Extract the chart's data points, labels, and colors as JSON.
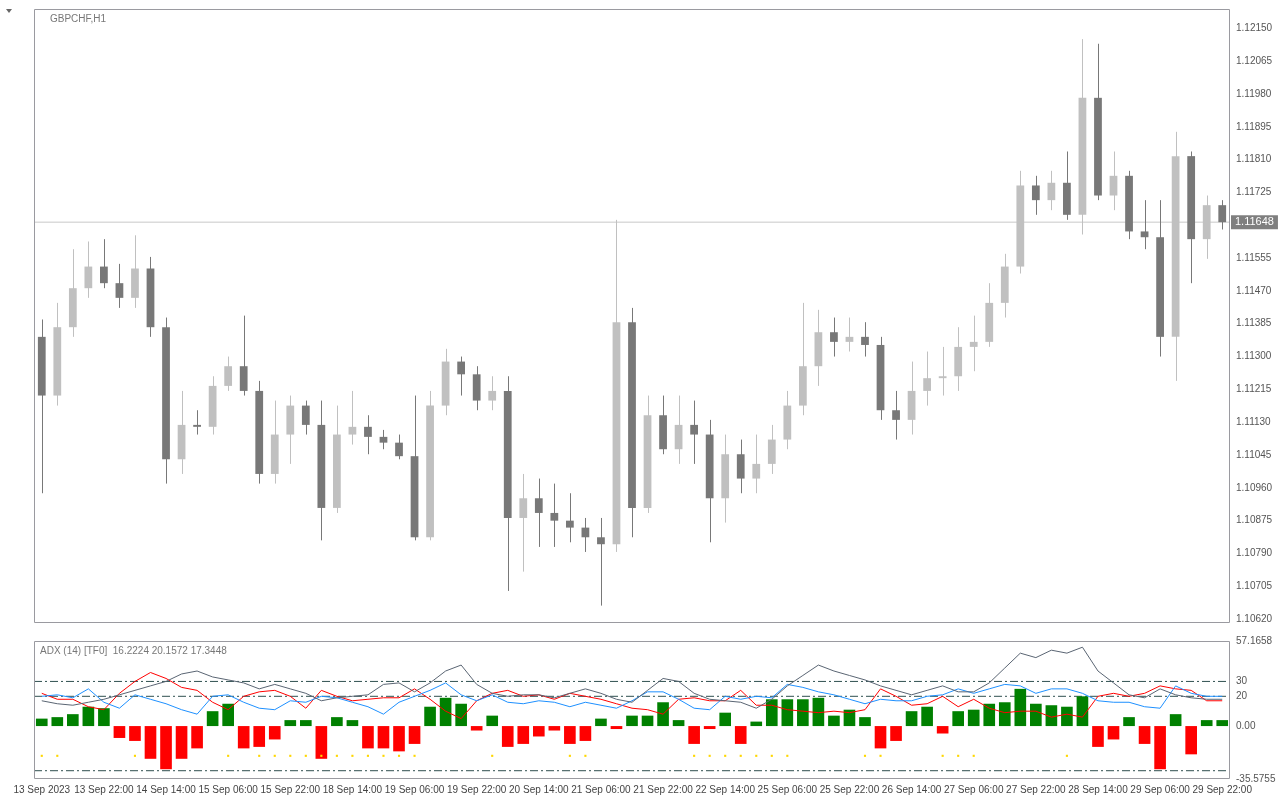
{
  "chart_data": [
    {
      "type": "candlestick",
      "title": "GBPCHF,H1",
      "ohlc": [
        [
          1.11351,
          1.11396,
          1.10946,
          1.11199
        ],
        [
          1.11199,
          1.11439,
          1.11173,
          1.11376
        ],
        [
          1.11376,
          1.11578,
          1.11351,
          1.11477
        ],
        [
          1.11477,
          1.11598,
          1.11452,
          1.11533
        ],
        [
          1.11533,
          1.11604,
          1.11477,
          1.1149
        ],
        [
          1.1149,
          1.1154,
          1.11426,
          1.11452
        ],
        [
          1.11452,
          1.11614,
          1.11426,
          1.11528
        ],
        [
          1.11528,
          1.11558,
          1.11351,
          1.11376
        ],
        [
          1.11376,
          1.11401,
          1.10971,
          1.11034
        ],
        [
          1.11034,
          1.11211,
          1.10996,
          1.11123
        ],
        [
          1.11123,
          1.11161,
          1.11098,
          1.11118
        ],
        [
          1.11118,
          1.11249,
          1.11098,
          1.11224
        ],
        [
          1.11224,
          1.113,
          1.11211,
          1.11275
        ],
        [
          1.11275,
          1.11406,
          1.11199,
          1.11211
        ],
        [
          1.11211,
          1.11237,
          1.10971,
          1.10996
        ],
        [
          1.10996,
          1.11186,
          1.10971,
          1.11098
        ],
        [
          1.11098,
          1.11199,
          1.11022,
          1.11173
        ],
        [
          1.11173,
          1.11186,
          1.11098,
          1.11123
        ],
        [
          1.11123,
          1.11186,
          1.10824,
          1.10908
        ],
        [
          1.10908,
          1.11173,
          1.10895,
          1.11098
        ],
        [
          1.11098,
          1.11211,
          1.11072,
          1.11118
        ],
        [
          1.11118,
          1.11148,
          1.11047,
          1.11092
        ],
        [
          1.11092,
          1.1111,
          1.1106,
          1.11077
        ],
        [
          1.11077,
          1.11098,
          1.11034,
          1.11042
        ],
        [
          1.11042,
          1.11199,
          1.10824,
          1.10832
        ],
        [
          1.10832,
          1.11211,
          1.10824,
          1.11173
        ],
        [
          1.11173,
          1.1132,
          1.11148,
          1.11287
        ],
        [
          1.11287,
          1.113,
          1.11199,
          1.11254
        ],
        [
          1.11254,
          1.11275,
          1.11161,
          1.11186
        ],
        [
          1.11186,
          1.11249,
          1.11161,
          1.11211
        ],
        [
          1.11211,
          1.11249,
          1.10693,
          1.10882
        ],
        [
          1.10882,
          1.10996,
          1.10743,
          1.10933
        ],
        [
          1.10933,
          1.10984,
          1.10807,
          1.10895
        ],
        [
          1.10895,
          1.10971,
          1.10807,
          1.10875
        ],
        [
          1.10875,
          1.10946,
          1.10819,
          1.10857
        ],
        [
          1.10857,
          1.10882,
          1.10794,
          1.10832
        ],
        [
          1.10832,
          1.10882,
          1.10655,
          1.10814
        ],
        [
          1.10814,
          1.11654,
          1.10794,
          1.11389
        ],
        [
          1.11389,
          1.11426,
          1.10832,
          1.10908
        ],
        [
          1.10908,
          1.11199,
          1.10895,
          1.11148
        ],
        [
          1.11148,
          1.11199,
          1.11047,
          1.1106
        ],
        [
          1.1106,
          1.11199,
          1.11022,
          1.11123
        ],
        [
          1.11123,
          1.11186,
          1.11022,
          1.11098
        ],
        [
          1.11098,
          1.11136,
          1.10819,
          1.10933
        ],
        [
          1.10933,
          1.11098,
          1.1087,
          1.11047
        ],
        [
          1.11047,
          1.11085,
          1.10946,
          1.10984
        ],
        [
          1.10984,
          1.11098,
          1.10946,
          1.11022
        ],
        [
          1.11022,
          1.11123,
          1.10996,
          1.11085
        ],
        [
          1.11085,
          1.11211,
          1.1106,
          1.11173
        ],
        [
          1.11173,
          1.11439,
          1.11148,
          1.11275
        ],
        [
          1.11275,
          1.11421,
          1.11224,
          1.11363
        ],
        [
          1.11363,
          1.11401,
          1.113,
          1.11338
        ],
        [
          1.11338,
          1.11401,
          1.11313,
          1.11351
        ],
        [
          1.11351,
          1.11389,
          1.113,
          1.1133
        ],
        [
          1.1133,
          1.11351,
          1.11136,
          1.11161
        ],
        [
          1.11161,
          1.11211,
          1.11085,
          1.11136
        ],
        [
          1.11136,
          1.11287,
          1.11098,
          1.11211
        ],
        [
          1.11211,
          1.11313,
          1.11173,
          1.11244
        ],
        [
          1.11244,
          1.11325,
          1.11199,
          1.11249
        ],
        [
          1.11249,
          1.11376,
          1.11211,
          1.11325
        ],
        [
          1.11325,
          1.11406,
          1.11262,
          1.11338
        ],
        [
          1.11338,
          1.1149,
          1.11325,
          1.11439
        ],
        [
          1.11439,
          1.11566,
          1.11401,
          1.11533
        ],
        [
          1.11533,
          1.11781,
          1.11515,
          1.11743
        ],
        [
          1.11743,
          1.11768,
          1.11667,
          1.11705
        ],
        [
          1.11705,
          1.11781,
          1.11679,
          1.1175
        ],
        [
          1.1175,
          1.11831,
          1.11654,
          1.11667
        ],
        [
          1.11667,
          1.12122,
          1.11616,
          1.1197
        ],
        [
          1.1197,
          1.1211,
          1.11705,
          1.11717
        ],
        [
          1.11717,
          1.11831,
          1.11679,
          1.11768
        ],
        [
          1.11768,
          1.11781,
          1.11604,
          1.11624
        ],
        [
          1.11624,
          1.11705,
          1.11578,
          1.11609
        ],
        [
          1.11609,
          1.11705,
          1.113,
          1.11351
        ],
        [
          1.11351,
          1.11882,
          1.11237,
          1.11819
        ],
        [
          1.11819,
          1.11831,
          1.1149,
          1.11604
        ],
        [
          1.11604,
          1.11717,
          1.11553,
          1.11692
        ],
        [
          1.11692,
          1.11705,
          1.11629,
          1.11648
        ]
      ],
      "colors": [
        "#787878",
        "#c0c0c0",
        "#c0c0c0",
        "#c0c0c0",
        "#787878",
        "#787878",
        "#c0c0c0",
        "#787878",
        "#787878",
        "#c0c0c0",
        "#787878",
        "#c0c0c0",
        "#c0c0c0",
        "#787878",
        "#787878",
        "#c0c0c0",
        "#c0c0c0",
        "#787878",
        "#787878",
        "#c0c0c0",
        "#c0c0c0",
        "#787878",
        "#787878",
        "#787878",
        "#787878",
        "#c0c0c0",
        "#c0c0c0",
        "#787878",
        "#787878",
        "#c0c0c0",
        "#787878",
        "#c0c0c0",
        "#787878",
        "#787878",
        "#787878",
        "#787878",
        "#787878",
        "#c0c0c0",
        "#787878",
        "#c0c0c0",
        "#787878",
        "#c0c0c0",
        "#787878",
        "#787878",
        "#c0c0c0",
        "#787878",
        "#c0c0c0",
        "#c0c0c0",
        "#c0c0c0",
        "#c0c0c0",
        "#c0c0c0",
        "#787878",
        "#c0c0c0",
        "#787878",
        "#787878",
        "#787878",
        "#c0c0c0",
        "#c0c0c0",
        "#c0c0c0",
        "#c0c0c0",
        "#c0c0c0",
        "#c0c0c0",
        "#c0c0c0",
        "#c0c0c0",
        "#787878",
        "#c0c0c0",
        "#787878",
        "#c0c0c0",
        "#787878",
        "#c0c0c0",
        "#787878",
        "#787878",
        "#787878",
        "#c0c0c0",
        "#787878",
        "#c0c0c0",
        "#787878"
      ],
      "ylim": [
        1.1061,
        1.122
      ],
      "yticks": [
        {
          "value": 1.1215,
          "label": "1.12150"
        },
        {
          "value": 1.12065,
          "label": "1.12065"
        },
        {
          "value": 1.1198,
          "label": "1.11980"
        },
        {
          "value": 1.11895,
          "label": "1.11895"
        },
        {
          "value": 1.1181,
          "label": "1.11810"
        },
        {
          "value": 1.11725,
          "label": "1.11725"
        },
        {
          "value": 1.11555,
          "label": "1.11555"
        },
        {
          "value": 1.1147,
          "label": "1.11470"
        },
        {
          "value": 1.11385,
          "label": "1.11385"
        },
        {
          "value": 1.113,
          "label": "1.11300"
        },
        {
          "value": 1.11215,
          "label": "1.11215"
        },
        {
          "value": 1.1113,
          "label": "1.11130"
        },
        {
          "value": 1.11045,
          "label": "1.11045"
        },
        {
          "value": 1.1096,
          "label": "1.10960"
        },
        {
          "value": 1.10875,
          "label": "1.10875"
        },
        {
          "value": 1.1079,
          "label": "1.10790"
        },
        {
          "value": 1.10705,
          "label": "1.10705"
        },
        {
          "value": 1.1062,
          "label": "1.10620"
        }
      ],
      "ref_lines": [
        {
          "axis": "y",
          "value": 1.11648,
          "label": "1.11648",
          "color": "#c8c8c8"
        }
      ],
      "tick_labels": "y"
    },
    {
      "type": "line",
      "title": "ADX (14) [TF0]  16.2224 20.1572 17.3448",
      "categories": [
        "13 Sep 2023",
        null,
        null,
        null,
        "13 Sep 22:00",
        null,
        null,
        null,
        "14 Sep 14:00",
        null,
        null,
        null,
        "15 Sep 06:00",
        null,
        null,
        null,
        "15 Sep 22:00",
        null,
        null,
        null,
        "18 Sep 14:00",
        null,
        null,
        null,
        "19 Sep 06:00",
        null,
        null,
        null,
        "19 Sep 22:00",
        null,
        null,
        null,
        "20 Sep 14:00",
        null,
        null,
        null,
        "21 Sep 06:00",
        null,
        null,
        null,
        "21 Sep 22:00",
        null,
        null,
        null,
        "22 Sep 14:00",
        null,
        null,
        null,
        "25 Sep 06:00",
        null,
        null,
        null,
        "25 Sep 22:00",
        null,
        null,
        null,
        "26 Sep 14:00",
        null,
        null,
        null,
        "27 Sep 06:00",
        null,
        null,
        null,
        "27 Sep 22:00",
        null,
        null,
        null,
        "28 Sep 14:00",
        null,
        null,
        null,
        "29 Sep 06:00",
        null,
        null,
        null,
        "29 Sep 22:00"
      ],
      "series": [
        {
          "type": "bar",
          "colors": [
            "#008000",
            "#008000",
            "#008000",
            "#008000",
            "#008000",
            "#ff0000",
            "#ff0000",
            "#ff0000",
            "#ff0000",
            "#ff0000",
            "#ff0000",
            "#008000",
            "#008000",
            "#ff0000",
            "#ff0000",
            "#ff0000",
            "#008000",
            "#008000",
            "#ff0000",
            "#008000",
            "#008000",
            "#ff0000",
            "#ff0000",
            "#ff0000",
            "#ff0000",
            "#008000",
            "#008000",
            "#008000",
            "#ff0000",
            "#008000",
            "#ff0000",
            "#ff0000",
            "#ff0000",
            "#ff0000",
            "#ff0000",
            "#ff0000",
            "#008000",
            "#ff0000",
            "#008000",
            "#008000",
            "#008000",
            "#008000",
            "#ff0000",
            "#ff0000",
            "#008000",
            "#ff0000",
            "#008000",
            "#008000",
            "#008000",
            "#008000",
            "#008000",
            "#008000",
            "#008000",
            "#008000",
            "#ff0000",
            "#ff0000",
            "#008000",
            "#008000",
            "#ff0000",
            "#008000",
            "#008000",
            "#008000",
            "#008000",
            "#008000",
            "#008000",
            "#008000",
            "#008000",
            "#008000",
            "#ff0000",
            "#ff0000",
            "#008000",
            "#ff0000",
            "#ff0000",
            "#008000",
            "#ff0000",
            "#008000",
            "#008000"
          ],
          "values": [
            5,
            6,
            8,
            13,
            12,
            -8,
            -10,
            -22,
            -29,
            -22,
            -15,
            10,
            15,
            -15,
            -14,
            -9,
            4,
            4,
            -22,
            6,
            4,
            -15,
            -15,
            -17,
            -12,
            13,
            19,
            15,
            -3,
            7,
            -14,
            -12,
            -7,
            -3,
            -12,
            -10,
            5,
            -2,
            7,
            7,
            16,
            4,
            -12,
            -2,
            9,
            -12,
            3,
            18,
            18,
            18,
            19,
            7,
            11,
            6,
            -15,
            -10,
            10,
            13,
            -5,
            10,
            11,
            15,
            16,
            25,
            15,
            14,
            13,
            20,
            -14,
            -9,
            6,
            -12,
            -29,
            8,
            -19,
            4,
            4
          ]
        },
        {
          "type": "line",
          "color": "#5a6573",
          "values": [
            17,
            15,
            14,
            16,
            18,
            21,
            24,
            27,
            30,
            35,
            37,
            33,
            31,
            29,
            25,
            28,
            25,
            22,
            17,
            19,
            20,
            21,
            28,
            29,
            23,
            29,
            37,
            41,
            28,
            22,
            20,
            21,
            21,
            19,
            22,
            25,
            22,
            18,
            16,
            24,
            32,
            30,
            22,
            18,
            17,
            16,
            12,
            18,
            27,
            34,
            41,
            37,
            34,
            31,
            27,
            24,
            21,
            24,
            27,
            23,
            23,
            29,
            39,
            49,
            46,
            51,
            49,
            53,
            37,
            29,
            21,
            19,
            25,
            21,
            19,
            18,
            18
          ]
        },
        {
          "type": "line",
          "color": "#1e90ff",
          "values": [
            20,
            21,
            19,
            25,
            16,
            12,
            21,
            18,
            15,
            11,
            8,
            20,
            21,
            16,
            12,
            11,
            17,
            16,
            20,
            19,
            16,
            13,
            8,
            16,
            20,
            24,
            29,
            21,
            17,
            21,
            16,
            15,
            17,
            16,
            13,
            16,
            14,
            12,
            17,
            23,
            23,
            18,
            12,
            11,
            20,
            18,
            20,
            19,
            28,
            26,
            23,
            21,
            18,
            15,
            18,
            17,
            17,
            20,
            21,
            25,
            22,
            25,
            28,
            27,
            22,
            25,
            25,
            22,
            17,
            16,
            16,
            13,
            12,
            27,
            22,
            20,
            20
          ]
        },
        {
          "type": "line",
          "color": "#ff0000",
          "values": [
            22,
            18,
            18,
            13,
            11,
            22,
            30,
            36,
            32,
            26,
            24,
            16,
            11,
            20,
            23,
            24,
            20,
            12,
            24,
            20,
            17,
            18,
            19,
            19,
            25,
            18,
            10,
            5,
            17,
            22,
            24,
            20,
            21,
            18,
            22,
            20,
            18,
            15,
            12,
            11,
            8,
            18,
            19,
            17,
            17,
            24,
            14,
            14,
            11,
            10,
            9,
            10,
            9,
            11,
            25,
            20,
            14,
            15,
            20,
            13,
            18,
            12,
            9,
            10,
            10,
            6,
            8,
            6,
            20,
            22,
            20,
            22,
            27,
            25,
            24,
            17,
            17
          ]
        },
        {
          "type": "scatter",
          "color": "#ffd700",
          "marker": "square",
          "values": [
            -20,
            -20,
            null,
            null,
            null,
            null,
            -20,
            null,
            null,
            null,
            null,
            null,
            -20,
            null,
            -20,
            -20,
            -20,
            -20,
            -20,
            -20,
            -20,
            -20,
            -20,
            -20,
            -20,
            null,
            null,
            null,
            null,
            -20,
            null,
            null,
            null,
            null,
            -20,
            -20,
            null,
            null,
            null,
            null,
            null,
            null,
            -20,
            -20,
            -20,
            -20,
            -20,
            -20,
            -20,
            null,
            null,
            null,
            null,
            -20,
            -20,
            null,
            null,
            null,
            -20,
            -20,
            -20,
            null,
            null,
            null,
            null,
            null,
            -20,
            null,
            null,
            null,
            null,
            null,
            null,
            null,
            null,
            null,
            null
          ]
        }
      ],
      "ylim": [
        -35.5755,
        57.1658
      ],
      "yticks": [
        57.1658,
        30,
        20,
        {
          "value": 0,
          "label": "0.00"
        },
        {
          "value": -30,
          "label": null
        },
        -35.5755
      ],
      "ref_lines": [
        {
          "axis": "y",
          "value": 30,
          "color": "#2f4f4f",
          "line_style": "dashed"
        },
        {
          "axis": "y",
          "value": 20,
          "color": "#2f4f4f",
          "line_style": "dashed"
        },
        {
          "axis": "y",
          "value": -30,
          "color": "#2f4f4f",
          "line_style": "dashed"
        }
      ],
      "marker": "none"
    }
  ]
}
